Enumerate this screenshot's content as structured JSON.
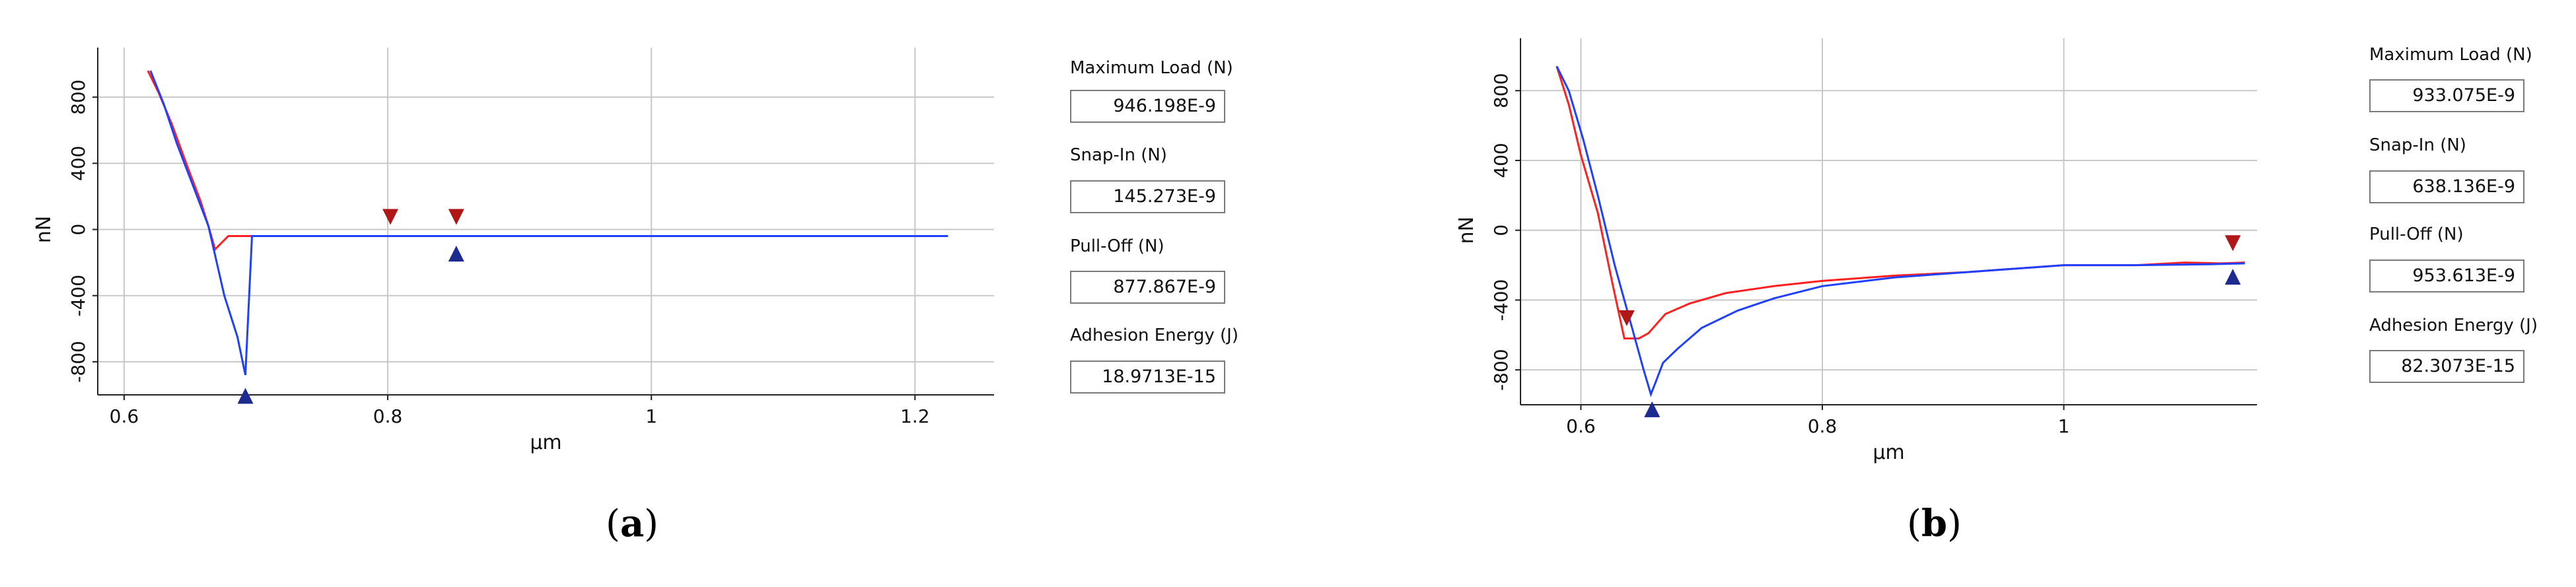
{
  "chart_data": [
    {
      "panel": "(a)",
      "type": "line",
      "xlabel": "µm",
      "ylabel": "nN",
      "xlim": [
        0.58,
        1.26
      ],
      "ylim": [
        -1000,
        1100
      ],
      "x_ticks": [
        "0.6",
        "0.8",
        "1",
        "1.2"
      ],
      "y_ticks": [
        "800",
        "400",
        "0",
        "-400",
        "-800"
      ],
      "grid": true,
      "series": [
        {
          "color": "#ff2020",
          "points": [
            [
              0.618,
              960
            ],
            [
              0.626,
              830
            ],
            [
              0.636,
              640
            ],
            [
              0.648,
              380
            ],
            [
              0.658,
              170
            ],
            [
              0.664,
              20
            ],
            [
              0.669,
              -120
            ],
            [
              0.679,
              -40
            ],
            [
              0.7,
              -40
            ],
            [
              0.85,
              -40
            ],
            [
              1.0,
              -40
            ],
            [
              1.12,
              -40
            ],
            [
              1.225,
              -40
            ]
          ]
        },
        {
          "color": "#2040ff",
          "points": [
            [
              0.62,
              960
            ],
            [
              0.63,
              760
            ],
            [
              0.64,
              520
            ],
            [
              0.652,
              270
            ],
            [
              0.664,
              20
            ],
            [
              0.676,
              -400
            ],
            [
              0.686,
              -650
            ],
            [
              0.692,
              -880
            ],
            [
              0.697,
              -40
            ],
            [
              0.75,
              -40
            ],
            [
              0.85,
              -40
            ],
            [
              1.0,
              -40
            ],
            [
              1.225,
              -40
            ]
          ]
        }
      ],
      "markers": [
        {
          "x": 0.802,
          "y": 80,
          "dir": "down",
          "color": "#b01818"
        },
        {
          "x": 0.852,
          "y": 80,
          "dir": "down",
          "color": "#b01818"
        },
        {
          "x": 0.852,
          "y": -150,
          "dir": "up",
          "color": "#1d2a8f"
        },
        {
          "x": 0.692,
          "y": -1010,
          "dir": "up",
          "color": "#1d2a8f"
        }
      ]
    },
    {
      "panel": "(b)",
      "type": "line",
      "xlabel": "µm",
      "ylabel": "nN",
      "xlim": [
        0.55,
        1.16
      ],
      "ylim": [
        -1000,
        1100
      ],
      "x_ticks": [
        "0.6",
        "0.8",
        "1"
      ],
      "y_ticks": [
        "800",
        "400",
        "0",
        "-400",
        "-800"
      ],
      "grid": true,
      "series": [
        {
          "color": "#ff2020",
          "points": [
            [
              0.58,
              940
            ],
            [
              0.59,
              720
            ],
            [
              0.6,
              430
            ],
            [
              0.614,
              100
            ],
            [
              0.626,
              -300
            ],
            [
              0.636,
              -620
            ],
            [
              0.648,
              -620
            ],
            [
              0.656,
              -590
            ],
            [
              0.67,
              -480
            ],
            [
              0.69,
              -420
            ],
            [
              0.72,
              -360
            ],
            [
              0.76,
              -320
            ],
            [
              0.8,
              -290
            ],
            [
              0.86,
              -260
            ],
            [
              0.92,
              -240
            ],
            [
              1.0,
              -200
            ],
            [
              1.06,
              -200
            ],
            [
              1.1,
              -185
            ],
            [
              1.13,
              -190
            ],
            [
              1.15,
              -185
            ]
          ]
        },
        {
          "color": "#2040ff",
          "points": [
            [
              0.58,
              940
            ],
            [
              0.59,
              800
            ],
            [
              0.602,
              520
            ],
            [
              0.614,
              200
            ],
            [
              0.628,
              -200
            ],
            [
              0.642,
              -550
            ],
            [
              0.652,
              -800
            ],
            [
              0.658,
              -940
            ],
            [
              0.662,
              -870
            ],
            [
              0.668,
              -760
            ],
            [
              0.68,
              -680
            ],
            [
              0.7,
              -560
            ],
            [
              0.73,
              -460
            ],
            [
              0.76,
              -390
            ],
            [
              0.8,
              -320
            ],
            [
              0.86,
              -270
            ],
            [
              0.92,
              -240
            ],
            [
              1.0,
              -200
            ],
            [
              1.06,
              -200
            ],
            [
              1.12,
              -195
            ],
            [
              1.15,
              -190
            ]
          ]
        }
      ],
      "markers": [
        {
          "x": 0.638,
          "y": -500,
          "dir": "down",
          "color": "#b01818"
        },
        {
          "x": 1.14,
          "y": -70,
          "dir": "down",
          "color": "#b01818"
        },
        {
          "x": 1.14,
          "y": -270,
          "dir": "up",
          "color": "#1d2a8f"
        },
        {
          "x": 0.659,
          "y": -1030,
          "dir": "up",
          "color": "#1d2a8f"
        }
      ]
    }
  ],
  "side_panels": [
    {
      "fields": [
        {
          "label": "Maximum Load (N)",
          "value": "946.198E-9"
        },
        {
          "label": "Snap-In (N)",
          "value": "145.273E-9"
        },
        {
          "label": "Pull-Off (N)",
          "value": "877.867E-9"
        },
        {
          "label": "Adhesion Energy (J)",
          "value": "18.9713E-15"
        }
      ]
    },
    {
      "fields": [
        {
          "label": "Maximum Load (N)",
          "value": "933.075E-9"
        },
        {
          "label": "Snap-In (N)",
          "value": "638.136E-9"
        },
        {
          "label": "Pull-Off (N)",
          "value": "953.613E-9"
        },
        {
          "label": "Adhesion Energy (J)",
          "value": "82.3073E-15"
        }
      ]
    }
  ],
  "captions": [
    {
      "open": "(",
      "letter": "a",
      "close": ")"
    },
    {
      "open": "(",
      "letter": "b",
      "close": ")"
    }
  ]
}
